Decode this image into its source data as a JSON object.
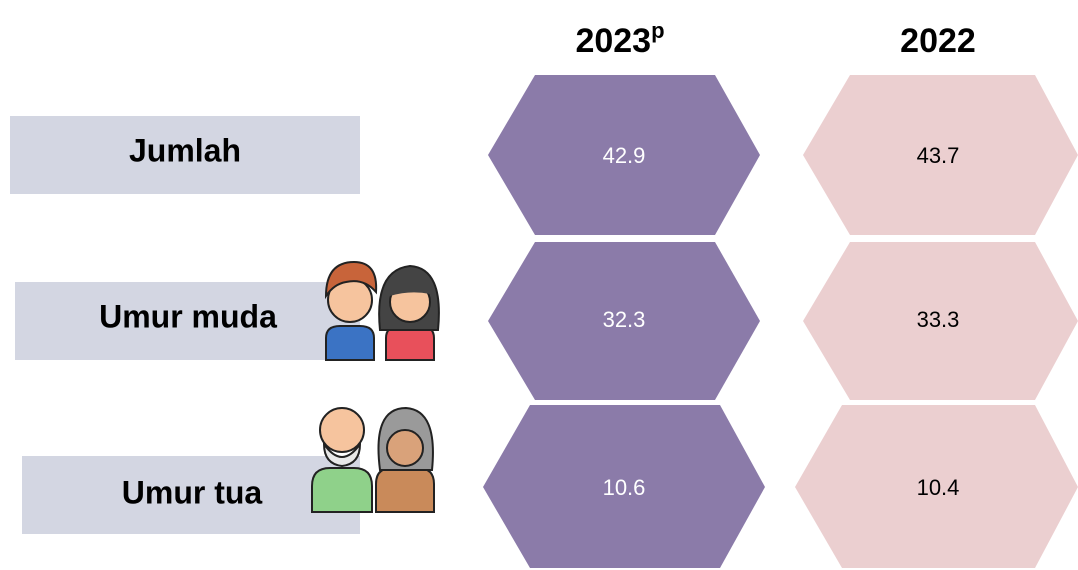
{
  "header": {
    "columns": [
      {
        "year": "2023",
        "mark": "p"
      },
      {
        "year": "2022"
      }
    ]
  },
  "table": {
    "rows": [
      {
        "label": "Jumlah",
        "values": [
          42.9,
          43.7
        ]
      },
      {
        "label": "Umur muda",
        "values": [
          32.3,
          33.3
        ]
      },
      {
        "label": "Umur tua",
        "values": [
          10.6,
          10.4
        ]
      }
    ]
  }
}
